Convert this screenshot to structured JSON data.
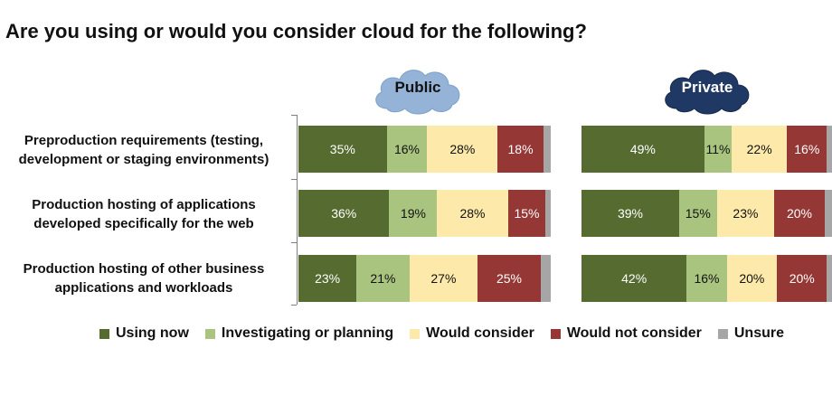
{
  "chart_data": {
    "type": "bar",
    "orientation": "horizontal",
    "stacked": true,
    "normalized": true,
    "title": "Are you using or would you consider cloud for the following?",
    "categories": [
      [
        "Preproduction requirements (testing,",
        "development or staging environments)"
      ],
      [
        "Production hosting of applications",
        "developed specifically for the web"
      ],
      [
        "Production hosting of other business",
        "applications and workloads"
      ]
    ],
    "legend": {
      "position": "bottom",
      "items": [
        "Using now",
        "Investigating or planning",
        "Would consider",
        "Would not consider",
        "Unsure"
      ]
    },
    "colors": {
      "Using now": "#556b2f",
      "Investigating or planning": "#a9c47f",
      "Would consider": "#fde9a9",
      "Would not consider": "#953735",
      "Unsure": "#a6a6a6",
      "public_cloud": "#95b3d7",
      "private_cloud": "#1f3864"
    },
    "panels": [
      {
        "name": "Public",
        "values": [
          [
            35,
            16,
            28,
            18,
            3
          ],
          [
            36,
            19,
            28,
            15,
            2
          ],
          [
            23,
            21,
            27,
            25,
            4
          ]
        ],
        "labels": [
          [
            "35%",
            "16%",
            "28%",
            "18%",
            ""
          ],
          [
            "36%",
            "19%",
            "28%",
            "15%",
            ""
          ],
          [
            "23%",
            "21%",
            "27%",
            "25%",
            ""
          ]
        ]
      },
      {
        "name": "Private",
        "values": [
          [
            49,
            11,
            22,
            16,
            2
          ],
          [
            39,
            15,
            23,
            20,
            3
          ],
          [
            42,
            16,
            20,
            20,
            2
          ]
        ],
        "labels": [
          [
            "49%",
            "11%",
            "22%",
            "16%",
            ""
          ],
          [
            "39%",
            "15%",
            "23%",
            "20%",
            ""
          ],
          [
            "42%",
            "16%",
            "20%",
            "20%",
            ""
          ]
        ]
      }
    ]
  }
}
